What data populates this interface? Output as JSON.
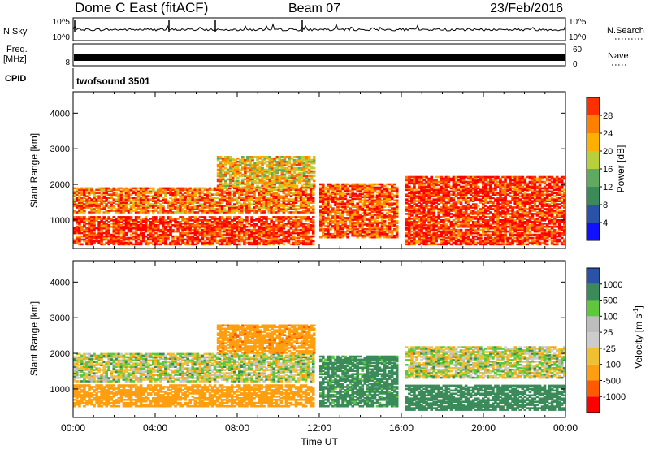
{
  "header": {
    "station": "Dome C East (fitACF)",
    "beam": "Beam 07",
    "date": "23/Feb/2016"
  },
  "top_panels": {
    "nsky_label": "N.Sky",
    "nsky_ticks": [
      "10^5",
      "10^0"
    ],
    "nsearch_label": "N.Search",
    "nsearch_ticks": [
      "10^5",
      "10^0"
    ],
    "freq_label_1": "Freq.",
    "freq_label_2": "[MHz]",
    "freq_tick": "8",
    "nave_label": "Nave",
    "nave_ticks": [
      "60",
      "0"
    ],
    "cpid_label": "CPID",
    "cpid_value": "twofsound 3501"
  },
  "colors": {
    "power": [
      "#1010ff",
      "#2a52a8",
      "#3a8a5a",
      "#5faa5f",
      "#b7cf3a",
      "#ffaf00",
      "#ff7f00",
      "#ff3000",
      "#ff0000"
    ],
    "velocity": [
      "#ff0000",
      "#ff5a00",
      "#ff9f10",
      "#f0c030",
      "#cccccc",
      "#bdbdbd",
      "#5ec83c",
      "#3a8a5a",
      "#2a52a8",
      "#1530d0"
    ]
  },
  "chart_data": [
    {
      "type": "heatmap",
      "title": "",
      "xlabel": "",
      "ylabel": "Slant Range [km]",
      "xlim": [
        "00:00",
        "24:00"
      ],
      "ylim": [
        200,
        4600
      ],
      "x_ticks": [
        "00:00",
        "04:00",
        "08:00",
        "12:00",
        "16:00",
        "20:00",
        "00:00"
      ],
      "y_ticks": [
        "1000",
        "2000",
        "3000",
        "4000"
      ],
      "colorbar": {
        "label": "Power [dB]",
        "ticks": [
          "4",
          "8",
          "12",
          "16",
          "20",
          "24",
          "28"
        ],
        "range": [
          0,
          30
        ]
      },
      "echo_bands": [
        {
          "t_start": 0.0,
          "t_end": 11.7,
          "range_start": 300,
          "range_end": 1100,
          "value": 26
        },
        {
          "t_start": 0.0,
          "t_end": 11.7,
          "range_start": 1200,
          "range_end": 1900,
          "value": 22
        },
        {
          "t_start": 7.0,
          "t_end": 11.7,
          "range_start": 1900,
          "range_end": 2800,
          "value": 18
        },
        {
          "t_start": 12.0,
          "t_end": 15.8,
          "range_start": 500,
          "range_end": 2000,
          "value": 24
        },
        {
          "t_start": 16.2,
          "t_end": 24.0,
          "range_start": 300,
          "range_end": 2200,
          "value": 26
        }
      ]
    },
    {
      "type": "heatmap",
      "title": "",
      "xlabel": "Time UT",
      "ylabel": "Slant Range [km]",
      "xlim": [
        "00:00",
        "24:00"
      ],
      "ylim": [
        200,
        4600
      ],
      "x_ticks": [
        "00:00",
        "04:00",
        "08:00",
        "12:00",
        "16:00",
        "20:00",
        "00:00"
      ],
      "y_ticks": [
        "1000",
        "2000",
        "3000",
        "4000"
      ],
      "colorbar": {
        "label": "Velocity [m s^-1]",
        "ticks": [
          "-1000",
          "-500",
          "-100",
          "-25",
          "25",
          "100",
          "500",
          "1000"
        ]
      },
      "echo_bands": [
        {
          "t_start": 0.0,
          "t_end": 11.7,
          "range_start": 1200,
          "range_end": 2000,
          "value": 0
        },
        {
          "t_start": 0.0,
          "t_end": 11.7,
          "range_start": 500,
          "range_end": 1100,
          "value": -300
        },
        {
          "t_start": 7.0,
          "t_end": 11.7,
          "range_start": 2000,
          "range_end": 2800,
          "value": -400
        },
        {
          "t_start": 12.0,
          "t_end": 15.8,
          "range_start": 500,
          "range_end": 1900,
          "value": 200
        },
        {
          "t_start": 16.2,
          "t_end": 24.0,
          "range_start": 1300,
          "range_end": 2200,
          "value": 0
        },
        {
          "t_start": 16.2,
          "t_end": 24.0,
          "range_start": 400,
          "range_end": 1100,
          "value": 300
        }
      ]
    }
  ]
}
